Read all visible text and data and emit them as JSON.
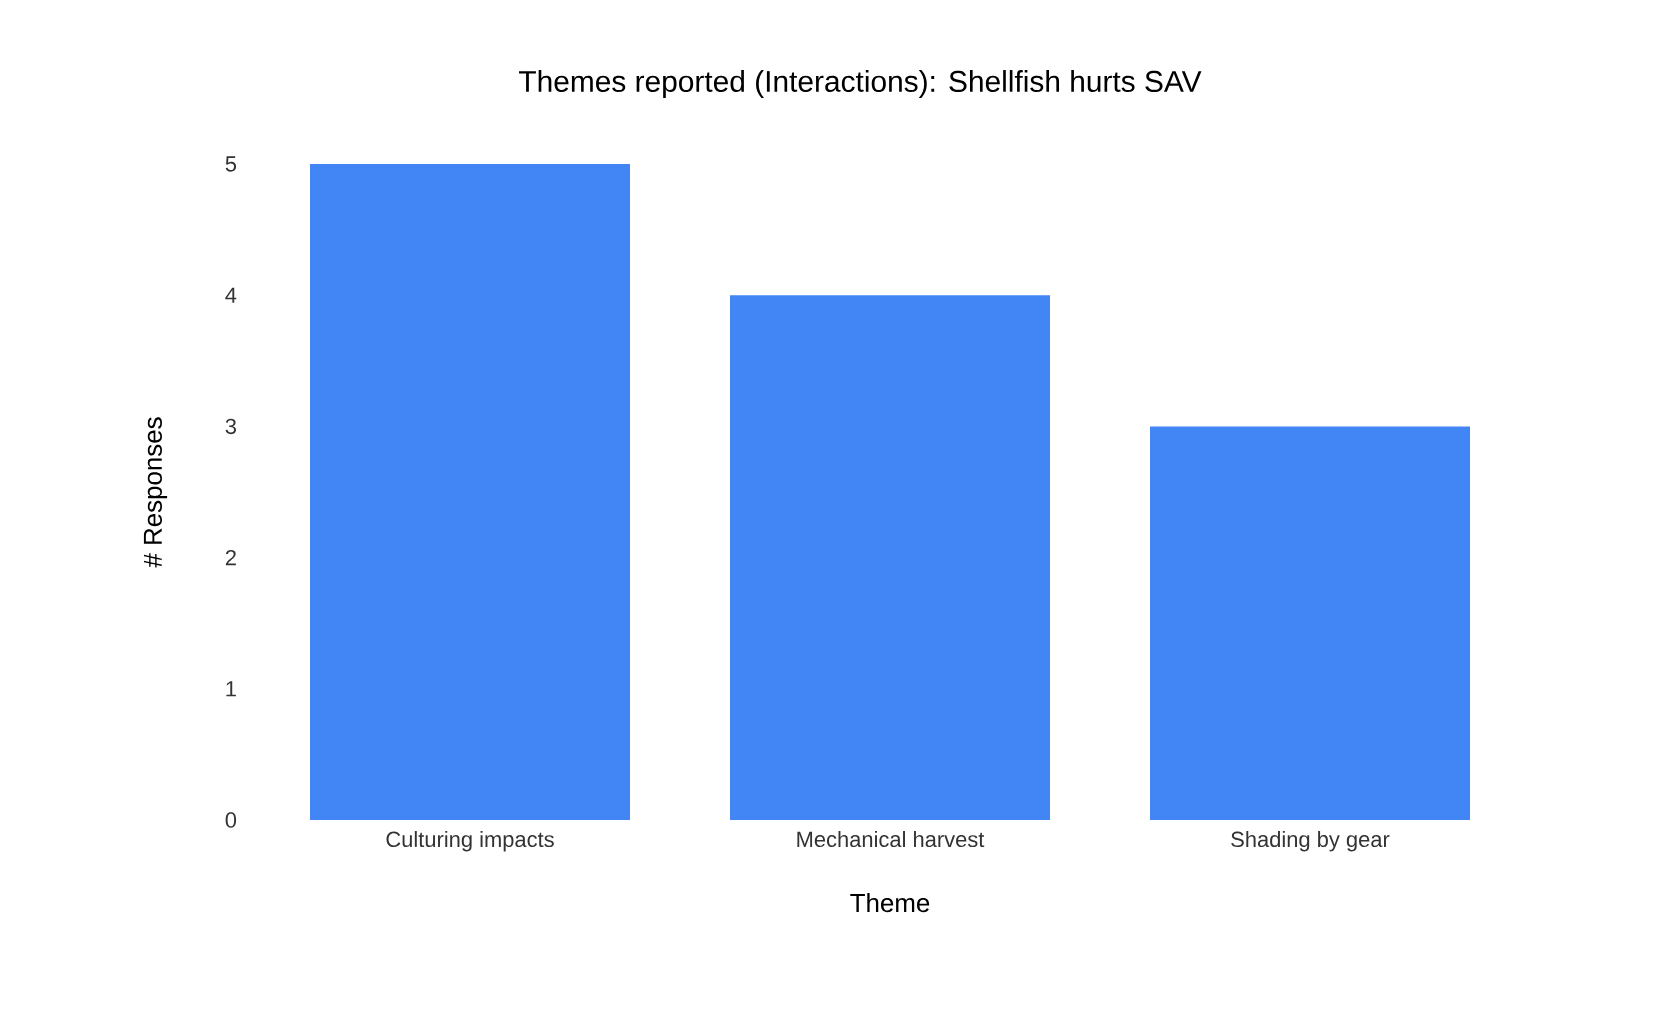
{
  "chart_data": {
    "type": "bar",
    "title": "Themes reported (Interactions): Shellfish hurts SAV",
    "xlabel": "Theme",
    "ylabel": "# Responses",
    "categories": [
      "Culturing impacts",
      "Mechanical harvest",
      "Shading by gear"
    ],
    "values": [
      5,
      4,
      3
    ],
    "color": "#4285f4",
    "ylim": [
      0,
      5
    ],
    "yticks": [
      0,
      1,
      2,
      3,
      4,
      5
    ]
  }
}
